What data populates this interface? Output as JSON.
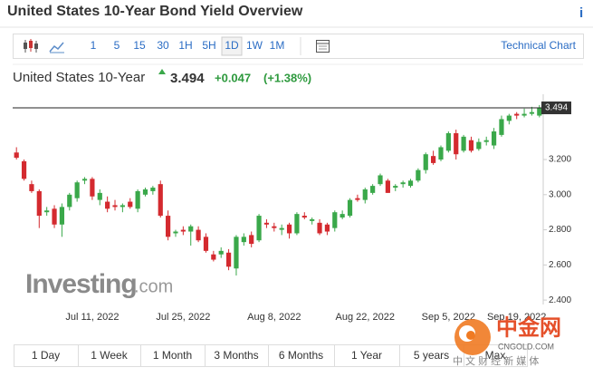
{
  "title": "United States 10-Year Bond Yield Overview",
  "info_icon": "i",
  "intervals": [
    "1",
    "5",
    "15",
    "30",
    "1H",
    "5H",
    "1D",
    "1W",
    "1M"
  ],
  "selected_interval": "1D",
  "technical_chart": "Technical Chart",
  "quote": {
    "name": "United States 10-Year",
    "change": {
      "value": 0.047,
      "label": "+0.047"
    },
    "change_pct": {
      "value": 1.38,
      "label": "(+1.38%)"
    }
  },
  "watermark": {
    "brand": "Investing",
    "suffix": ".com"
  },
  "overlay": {
    "name": "中金网",
    "site": "CNGOLD.COM",
    "slogan": "中 文 财 经 新 媒 体"
  },
  "ranges": [
    "1 Day",
    "1 Week",
    "1 Month",
    "3 Months",
    "6 Months",
    "1 Year",
    "5 years",
    "Max"
  ],
  "chart_data": {
    "type": "candlestick",
    "categories": [
      null,
      null,
      null,
      null,
      null,
      null,
      null,
      null,
      null,
      null,
      "Jul 11, 2022",
      null,
      null,
      null,
      null,
      null,
      null,
      null,
      null,
      null,
      null,
      null,
      "Jul 25, 2022",
      null,
      null,
      null,
      null,
      null,
      null,
      null,
      null,
      null,
      null,
      null,
      "Aug 8, 2022",
      null,
      null,
      null,
      null,
      null,
      null,
      null,
      null,
      null,
      null,
      null,
      "Aug 22, 2022",
      null,
      null,
      null,
      null,
      null,
      null,
      null,
      null,
      null,
      null,
      "Sep 5, 2022",
      null,
      null,
      null,
      null,
      null,
      null,
      null,
      null,
      "Sep 19, 2022",
      null,
      null,
      null
    ],
    "open": [
      3.24,
      3.19,
      3.06,
      3.02,
      2.9,
      2.92,
      2.83,
      2.93,
      2.98,
      3.08,
      3.09,
      2.97,
      2.96,
      2.94,
      2.93,
      2.96,
      2.92,
      3.0,
      3.02,
      3.06,
      2.88,
      2.78,
      2.8,
      2.79,
      2.8,
      2.76,
      2.66,
      2.66,
      2.67,
      2.58,
      2.73,
      2.77,
      2.74,
      2.84,
      2.82,
      2.8,
      2.83,
      2.78,
      2.88,
      2.85,
      2.84,
      2.83,
      2.81,
      2.87,
      2.88,
      2.98,
      2.97,
      3.01,
      3.06,
      3.08,
      3.04,
      3.06,
      3.05,
      3.08,
      3.14,
      3.22,
      3.2,
      3.25,
      3.35,
      3.25,
      3.31,
      3.26,
      3.3,
      3.28,
      3.34,
      3.42,
      3.46,
      3.45,
      3.46,
      3.45
    ],
    "high": [
      3.27,
      3.2,
      3.08,
      3.03,
      2.93,
      2.94,
      2.95,
      3.01,
      3.08,
      3.1,
      3.1,
      3.03,
      2.99,
      2.97,
      2.95,
      2.98,
      3.03,
      3.04,
      3.05,
      3.08,
      2.91,
      2.8,
      2.82,
      2.83,
      2.82,
      2.78,
      2.68,
      2.7,
      2.69,
      2.77,
      2.78,
      2.79,
      2.89,
      2.86,
      2.84,
      2.83,
      2.84,
      2.9,
      2.9,
      2.87,
      2.86,
      2.84,
      2.91,
      2.91,
      2.98,
      3.0,
      3.04,
      3.06,
      3.12,
      3.09,
      3.06,
      3.08,
      3.09,
      3.15,
      3.24,
      3.25,
      3.28,
      3.36,
      3.37,
      3.34,
      3.33,
      3.32,
      3.33,
      3.38,
      3.45,
      3.46,
      3.47,
      3.49,
      3.5,
      3.51
    ],
    "low": [
      3.2,
      3.08,
      3.01,
      2.81,
      2.88,
      2.81,
      2.76,
      2.91,
      2.96,
      3.06,
      2.97,
      2.94,
      2.9,
      2.91,
      2.9,
      2.92,
      2.9,
      2.99,
      3.0,
      2.87,
      2.74,
      2.76,
      2.77,
      2.71,
      2.73,
      2.67,
      2.62,
      2.64,
      2.57,
      2.54,
      2.71,
      2.7,
      2.73,
      2.81,
      2.79,
      2.77,
      2.75,
      2.77,
      2.86,
      2.83,
      2.77,
      2.77,
      2.79,
      2.86,
      2.87,
      2.96,
      2.95,
      3.0,
      3.05,
      3.01,
      3.02,
      3.04,
      3.04,
      3.07,
      3.12,
      3.17,
      3.19,
      3.24,
      3.2,
      3.24,
      3.24,
      3.25,
      3.28,
      3.26,
      3.33,
      3.4,
      3.43,
      3.44,
      3.45,
      3.44
    ],
    "close": [
      3.21,
      3.09,
      3.02,
      2.88,
      2.91,
      2.83,
      2.93,
      3.0,
      3.07,
      3.09,
      2.99,
      3.01,
      2.92,
      2.93,
      2.94,
      2.93,
      3.02,
      3.03,
      3.04,
      2.88,
      2.76,
      2.79,
      2.79,
      2.82,
      2.74,
      2.68,
      2.63,
      2.68,
      2.59,
      2.76,
      2.76,
      2.72,
      2.88,
      2.83,
      2.81,
      2.81,
      2.78,
      2.89,
      2.87,
      2.86,
      2.78,
      2.79,
      2.9,
      2.89,
      2.97,
      2.97,
      3.03,
      3.05,
      3.11,
      3.01,
      3.05,
      3.07,
      3.08,
      3.14,
      3.23,
      3.18,
      3.27,
      3.35,
      3.23,
      3.33,
      3.25,
      3.3,
      3.31,
      3.36,
      3.43,
      3.45,
      3.45,
      3.46,
      3.47,
      3.494
    ],
    "last_price": 3.494,
    "up_color": "#3aa84a",
    "down_color": "#d42a2f",
    "ylim": [
      2.38,
      3.57
    ],
    "yticks": [
      {
        "value": 2.4,
        "label": "2.400"
      },
      {
        "value": 2.6,
        "label": "2.600"
      },
      {
        "value": 2.8,
        "label": "2.800"
      },
      {
        "value": 3.0,
        "label": "3.000"
      },
      {
        "value": 3.2,
        "label": "3.200"
      }
    ],
    "grid": false
  }
}
